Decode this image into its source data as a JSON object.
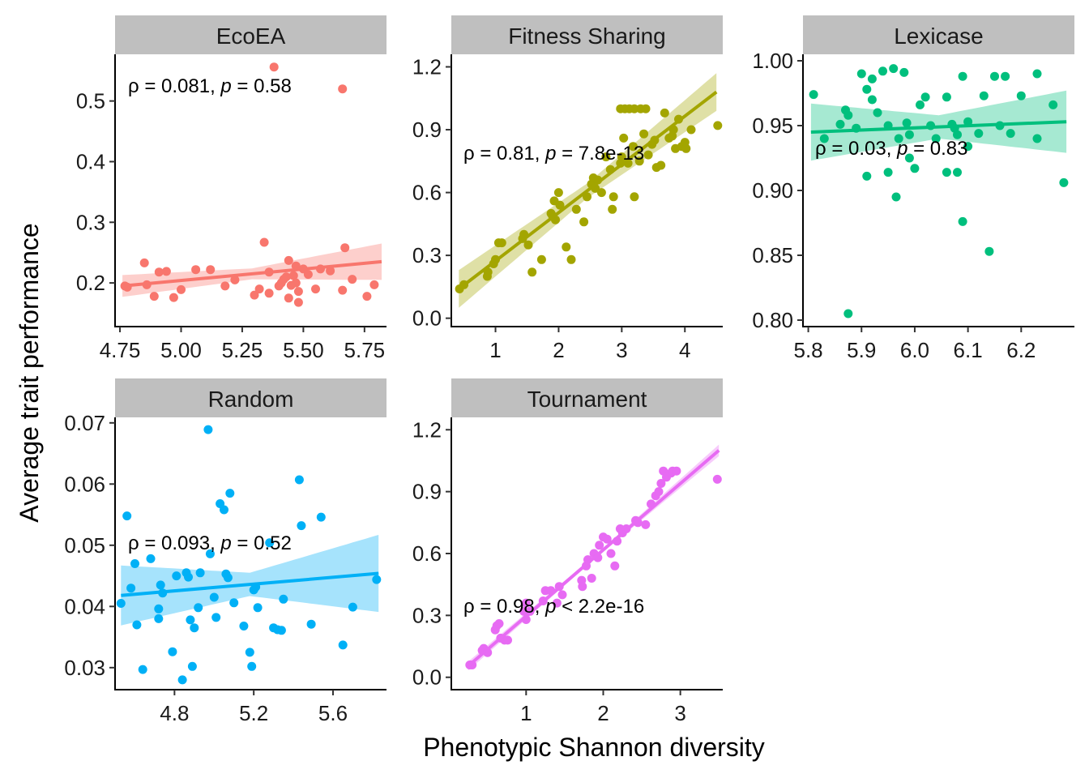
{
  "xlabel": "Phenotypic Shannon diversity",
  "ylabel": "Average trait performance",
  "chart_data": [
    {
      "type": "scatter",
      "title": "EcoEA",
      "color": "#F8766D",
      "xlim": [
        4.73,
        5.84
      ],
      "ylim": [
        0.128,
        0.577
      ],
      "xticks": [
        4.75,
        5.0,
        5.25,
        5.5,
        5.75
      ],
      "xtick_labels": [
        "4.75",
        "5.00",
        "5.25",
        "5.50",
        "5.75"
      ],
      "yticks": [
        0.2,
        0.3,
        0.4,
        0.5
      ],
      "ytick_labels": [
        "0.2",
        "0.3",
        "0.4",
        "0.5"
      ],
      "annotation": {
        "pre": "ρ = 0.081, ",
        "p": "p",
        "post": " = 0.58"
      },
      "fit": {
        "x0": 4.76,
        "y0": 0.195,
        "x1": 5.82,
        "y1": 0.235,
        "band_start": 0.018,
        "band_mid": 0.009,
        "band_end": 0.03
      },
      "points": [
        [
          4.77,
          0.195
        ],
        [
          4.78,
          0.193
        ],
        [
          4.85,
          0.233
        ],
        [
          4.86,
          0.197
        ],
        [
          4.89,
          0.178
        ],
        [
          4.91,
          0.218
        ],
        [
          4.94,
          0.219
        ],
        [
          4.97,
          0.176
        ],
        [
          5.0,
          0.189
        ],
        [
          5.06,
          0.222
        ],
        [
          5.12,
          0.222
        ],
        [
          5.18,
          0.195
        ],
        [
          5.22,
          0.205
        ],
        [
          5.3,
          0.18
        ],
        [
          5.32,
          0.19
        ],
        [
          5.34,
          0.267
        ],
        [
          5.36,
          0.218
        ],
        [
          5.36,
          0.183
        ],
        [
          5.4,
          0.195
        ],
        [
          5.41,
          0.2
        ],
        [
          5.42,
          0.206
        ],
        [
          5.43,
          0.21
        ],
        [
          5.44,
          0.175
        ],
        [
          5.44,
          0.237
        ],
        [
          5.45,
          0.196
        ],
        [
          5.46,
          0.212
        ],
        [
          5.47,
          0.228
        ],
        [
          5.47,
          0.2
        ],
        [
          5.48,
          0.168
        ],
        [
          5.48,
          0.186
        ],
        [
          5.5,
          0.223
        ],
        [
          5.52,
          0.214
        ],
        [
          5.55,
          0.19
        ],
        [
          5.57,
          0.223
        ],
        [
          5.61,
          0.22
        ],
        [
          5.66,
          0.188
        ],
        [
          5.67,
          0.258
        ],
        [
          5.7,
          0.206
        ],
        [
          5.76,
          0.178
        ],
        [
          5.79,
          0.197
        ],
        [
          5.38,
          0.556
        ],
        [
          5.66,
          0.52
        ]
      ]
    },
    {
      "type": "scatter",
      "title": "Fitness Sharing",
      "color": "#A3A500",
      "xlim": [
        0.3,
        4.6
      ],
      "ylim": [
        -0.04,
        1.26
      ],
      "xticks": [
        1,
        2,
        3,
        4
      ],
      "xtick_labels": [
        "1",
        "2",
        "3",
        "4"
      ],
      "yticks": [
        0.0,
        0.3,
        0.6,
        0.9,
        1.2
      ],
      "ytick_labels": [
        "0.0",
        "0.3",
        "0.6",
        "0.9",
        "1.2"
      ],
      "annotation": {
        "pre": "ρ = 0.81, ",
        "p": "p",
        "post": " = 7.8e-13"
      },
      "fit": {
        "x0": 0.42,
        "y0": 0.14,
        "x1": 4.5,
        "y1": 1.08,
        "band_start": 0.09,
        "band_mid": 0.035,
        "band_end": 0.09
      },
      "points": [
        [
          0.43,
          0.14
        ],
        [
          0.5,
          0.16
        ],
        [
          0.87,
          0.2
        ],
        [
          0.88,
          0.22
        ],
        [
          0.97,
          0.26
        ],
        [
          1.0,
          0.28
        ],
        [
          1.05,
          0.36
        ],
        [
          1.1,
          0.36
        ],
        [
          1.43,
          0.38
        ],
        [
          1.45,
          0.4
        ],
        [
          1.52,
          0.35
        ],
        [
          1.58,
          0.22
        ],
        [
          1.73,
          0.28
        ],
        [
          1.88,
          0.5
        ],
        [
          1.9,
          0.49
        ],
        [
          1.93,
          0.56
        ],
        [
          1.95,
          0.47
        ],
        [
          2.0,
          0.6
        ],
        [
          2.02,
          0.54
        ],
        [
          2.12,
          0.34
        ],
        [
          2.2,
          0.28
        ],
        [
          2.28,
          0.52
        ],
        [
          2.4,
          0.46
        ],
        [
          2.45,
          0.58
        ],
        [
          2.52,
          0.64
        ],
        [
          2.55,
          0.67
        ],
        [
          2.58,
          0.62
        ],
        [
          2.62,
          0.66
        ],
        [
          2.68,
          0.6
        ],
        [
          2.75,
          0.77
        ],
        [
          2.82,
          0.71
        ],
        [
          2.85,
          0.52
        ],
        [
          2.87,
          0.58
        ],
        [
          2.98,
          0.74
        ],
        [
          3.0,
          0.77
        ],
        [
          3.03,
          0.86
        ],
        [
          3.1,
          0.74
        ],
        [
          3.18,
          0.82
        ],
        [
          3.2,
          0.58
        ],
        [
          3.28,
          0.75
        ],
        [
          3.35,
          0.88
        ],
        [
          3.42,
          0.78
        ],
        [
          3.48,
          0.83
        ],
        [
          3.52,
          0.85
        ],
        [
          3.55,
          0.72
        ],
        [
          3.62,
          0.73
        ],
        [
          3.68,
          0.98
        ],
        [
          3.75,
          0.86
        ],
        [
          3.8,
          0.87
        ],
        [
          3.82,
          0.9
        ],
        [
          3.85,
          0.81
        ],
        [
          3.9,
          0.95
        ],
        [
          3.95,
          0.82
        ],
        [
          4.0,
          0.84
        ],
        [
          4.02,
          0.81
        ],
        [
          4.1,
          0.9
        ],
        [
          4.52,
          0.92
        ],
        [
          2.98,
          1.0
        ],
        [
          3.05,
          1.0
        ],
        [
          3.12,
          1.0
        ],
        [
          3.2,
          1.0
        ],
        [
          3.3,
          1.0
        ],
        [
          3.38,
          1.0
        ]
      ]
    },
    {
      "type": "scatter",
      "title": "Lexicase",
      "color": "#00BF7D",
      "xlim": [
        5.79,
        6.3
      ],
      "ylim": [
        0.795,
        1.005
      ],
      "xticks": [
        5.8,
        5.9,
        6.0,
        6.1,
        6.2
      ],
      "xtick_labels": [
        "5.8",
        "5.9",
        "6.0",
        "6.1",
        "6.2"
      ],
      "yticks": [
        0.8,
        0.85,
        0.9,
        0.95,
        1.0
      ],
      "ytick_labels": [
        "0.80",
        "0.85",
        "0.90",
        "0.95",
        "1.00"
      ],
      "annotation": {
        "pre": "ρ = 0.03, ",
        "p": "p",
        "post": " = 0.83"
      },
      "fit": {
        "x0": 5.805,
        "y0": 0.945,
        "x1": 6.285,
        "y1": 0.953,
        "band_start": 0.022,
        "band_mid": 0.009,
        "band_end": 0.024
      },
      "points": [
        [
          5.81,
          0.974
        ],
        [
          5.83,
          0.94
        ],
        [
          5.86,
          0.951
        ],
        [
          5.87,
          0.962
        ],
        [
          5.875,
          0.958
        ],
        [
          5.89,
          0.948
        ],
        [
          5.9,
          0.99
        ],
        [
          5.91,
          0.911
        ],
        [
          5.91,
          0.978
        ],
        [
          5.92,
          0.986
        ],
        [
          5.92,
          0.97
        ],
        [
          5.93,
          0.96
        ],
        [
          5.94,
          0.992
        ],
        [
          5.95,
          0.95
        ],
        [
          5.95,
          0.914
        ],
        [
          5.96,
          0.994
        ],
        [
          5.965,
          0.895
        ],
        [
          5.97,
          0.94
        ],
        [
          5.98,
          0.991
        ],
        [
          5.985,
          0.952
        ],
        [
          5.99,
          0.925
        ],
        [
          5.99,
          0.943
        ],
        [
          6.0,
          0.917
        ],
        [
          6.01,
          0.966
        ],
        [
          6.02,
          0.972
        ],
        [
          6.03,
          0.95
        ],
        [
          6.04,
          0.94
        ],
        [
          6.06,
          0.914
        ],
        [
          6.06,
          0.972
        ],
        [
          6.07,
          0.951
        ],
        [
          6.075,
          0.948
        ],
        [
          6.08,
          0.914
        ],
        [
          6.08,
          0.943
        ],
        [
          6.09,
          0.988
        ],
        [
          6.09,
          0.876
        ],
        [
          6.1,
          0.953
        ],
        [
          6.1,
          0.934
        ],
        [
          6.12,
          0.944
        ],
        [
          6.13,
          0.973
        ],
        [
          6.14,
          0.853
        ],
        [
          6.15,
          0.988
        ],
        [
          6.16,
          0.95
        ],
        [
          6.17,
          0.988
        ],
        [
          6.18,
          0.944
        ],
        [
          6.2,
          0.973
        ],
        [
          6.23,
          0.99
        ],
        [
          6.23,
          0.94
        ],
        [
          6.26,
          0.966
        ],
        [
          6.28,
          0.906
        ],
        [
          5.875,
          0.805
        ]
      ]
    },
    {
      "type": "scatter",
      "title": "Random",
      "color": "#00B0F6",
      "xlim": [
        4.5,
        5.87
      ],
      "ylim": [
        0.0264,
        0.0709
      ],
      "xticks": [
        4.8,
        5.2,
        5.6
      ],
      "xtick_labels": [
        "4.8",
        "5.2",
        "5.6"
      ],
      "yticks": [
        0.03,
        0.04,
        0.05,
        0.06,
        0.07
      ],
      "ytick_labels": [
        "0.03",
        "0.04",
        "0.05",
        "0.06",
        "0.07"
      ],
      "annotation": {
        "pre": "ρ = 0.093, ",
        "p": "p",
        "post": " = 0.52"
      },
      "fit": {
        "x0": 4.53,
        "y0": 0.0418,
        "x1": 5.83,
        "y1": 0.0454,
        "band_start": 0.0049,
        "band_mid": 0.0019,
        "band_end": 0.0063
      },
      "points": [
        [
          4.53,
          0.0405
        ],
        [
          4.56,
          0.0548
        ],
        [
          4.58,
          0.043
        ],
        [
          4.6,
          0.047
        ],
        [
          4.61,
          0.037
        ],
        [
          4.64,
          0.0297
        ],
        [
          4.68,
          0.0478
        ],
        [
          4.72,
          0.038
        ],
        [
          4.72,
          0.0396
        ],
        [
          4.73,
          0.0435
        ],
        [
          4.74,
          0.0422
        ],
        [
          4.79,
          0.0326
        ],
        [
          4.81,
          0.045
        ],
        [
          4.84,
          0.028
        ],
        [
          4.86,
          0.0455
        ],
        [
          4.87,
          0.0448
        ],
        [
          4.88,
          0.0378
        ],
        [
          4.89,
          0.0302
        ],
        [
          4.9,
          0.0365
        ],
        [
          4.92,
          0.0398
        ],
        [
          4.93,
          0.0455
        ],
        [
          4.97,
          0.0689
        ],
        [
          4.98,
          0.0486
        ],
        [
          5.0,
          0.0415
        ],
        [
          5.01,
          0.0382
        ],
        [
          5.03,
          0.0568
        ],
        [
          5.05,
          0.0558
        ],
        [
          5.06,
          0.0453
        ],
        [
          5.07,
          0.0447
        ],
        [
          5.08,
          0.0585
        ],
        [
          5.1,
          0.0406
        ],
        [
          5.15,
          0.0368
        ],
        [
          5.18,
          0.0325
        ],
        [
          5.19,
          0.0302
        ],
        [
          5.2,
          0.0427
        ],
        [
          5.21,
          0.0432
        ],
        [
          5.22,
          0.0398
        ],
        [
          5.28,
          0.0504
        ],
        [
          5.3,
          0.0365
        ],
        [
          5.32,
          0.0362
        ],
        [
          5.34,
          0.0361
        ],
        [
          5.35,
          0.0412
        ],
        [
          5.43,
          0.0607
        ],
        [
          5.44,
          0.0532
        ],
        [
          5.49,
          0.0371
        ],
        [
          5.54,
          0.0546
        ],
        [
          5.65,
          0.0337
        ],
        [
          5.7,
          0.0399
        ],
        [
          5.82,
          0.0444
        ]
      ]
    },
    {
      "type": "scatter",
      "title": "Tournament",
      "color": "#E76BF3",
      "xlim": [
        0.03,
        3.55
      ],
      "ylim": [
        -0.06,
        1.26
      ],
      "xticks": [
        1,
        2,
        3
      ],
      "xtick_labels": [
        "1",
        "2",
        "3"
      ],
      "yticks": [
        0.0,
        0.3,
        0.6,
        0.9,
        1.2
      ],
      "ytick_labels": [
        "0.0",
        "0.3",
        "0.6",
        "0.9",
        "1.2"
      ],
      "annotation": {
        "pre": "ρ = 0.98, ",
        "p": "p",
        "post": " < 2.2e-16"
      },
      "fit": {
        "x0": 0.25,
        "y0": 0.055,
        "x1": 3.5,
        "y1": 1.1,
        "band_start": 0.022,
        "band_mid": 0.008,
        "band_end": 0.028
      },
      "points": [
        [
          0.27,
          0.06
        ],
        [
          0.3,
          0.06
        ],
        [
          0.43,
          0.13
        ],
        [
          0.45,
          0.14
        ],
        [
          0.5,
          0.12
        ],
        [
          0.6,
          0.23
        ],
        [
          0.62,
          0.25
        ],
        [
          0.65,
          0.26
        ],
        [
          0.67,
          0.19
        ],
        [
          0.72,
          0.18
        ],
        [
          0.76,
          0.18
        ],
        [
          0.97,
          0.32
        ],
        [
          1.0,
          0.28
        ],
        [
          1.0,
          0.36
        ],
        [
          1.05,
          0.32
        ],
        [
          1.22,
          0.37
        ],
        [
          1.25,
          0.42
        ],
        [
          1.32,
          0.42
        ],
        [
          1.4,
          0.36
        ],
        [
          1.43,
          0.44
        ],
        [
          1.47,
          0.4
        ],
        [
          1.72,
          0.47
        ],
        [
          1.73,
          0.44
        ],
        [
          1.78,
          0.54
        ],
        [
          1.8,
          0.57
        ],
        [
          1.85,
          0.48
        ],
        [
          1.88,
          0.6
        ],
        [
          1.93,
          0.58
        ],
        [
          1.95,
          0.64
        ],
        [
          2.0,
          0.68
        ],
        [
          2.05,
          0.67
        ],
        [
          2.1,
          0.6
        ],
        [
          2.15,
          0.54
        ],
        [
          2.18,
          0.66
        ],
        [
          2.22,
          0.72
        ],
        [
          2.25,
          0.7
        ],
        [
          2.3,
          0.72
        ],
        [
          2.42,
          0.76
        ],
        [
          2.45,
          0.75
        ],
        [
          2.55,
          0.74
        ],
        [
          2.62,
          0.84
        ],
        [
          2.68,
          0.88
        ],
        [
          2.72,
          0.9
        ],
        [
          2.75,
          0.94
        ],
        [
          2.78,
          1.0
        ],
        [
          2.82,
          0.97
        ],
        [
          2.88,
          0.99
        ],
        [
          2.9,
          1.0
        ],
        [
          2.95,
          1.0
        ],
        [
          3.48,
          0.96
        ]
      ]
    }
  ]
}
